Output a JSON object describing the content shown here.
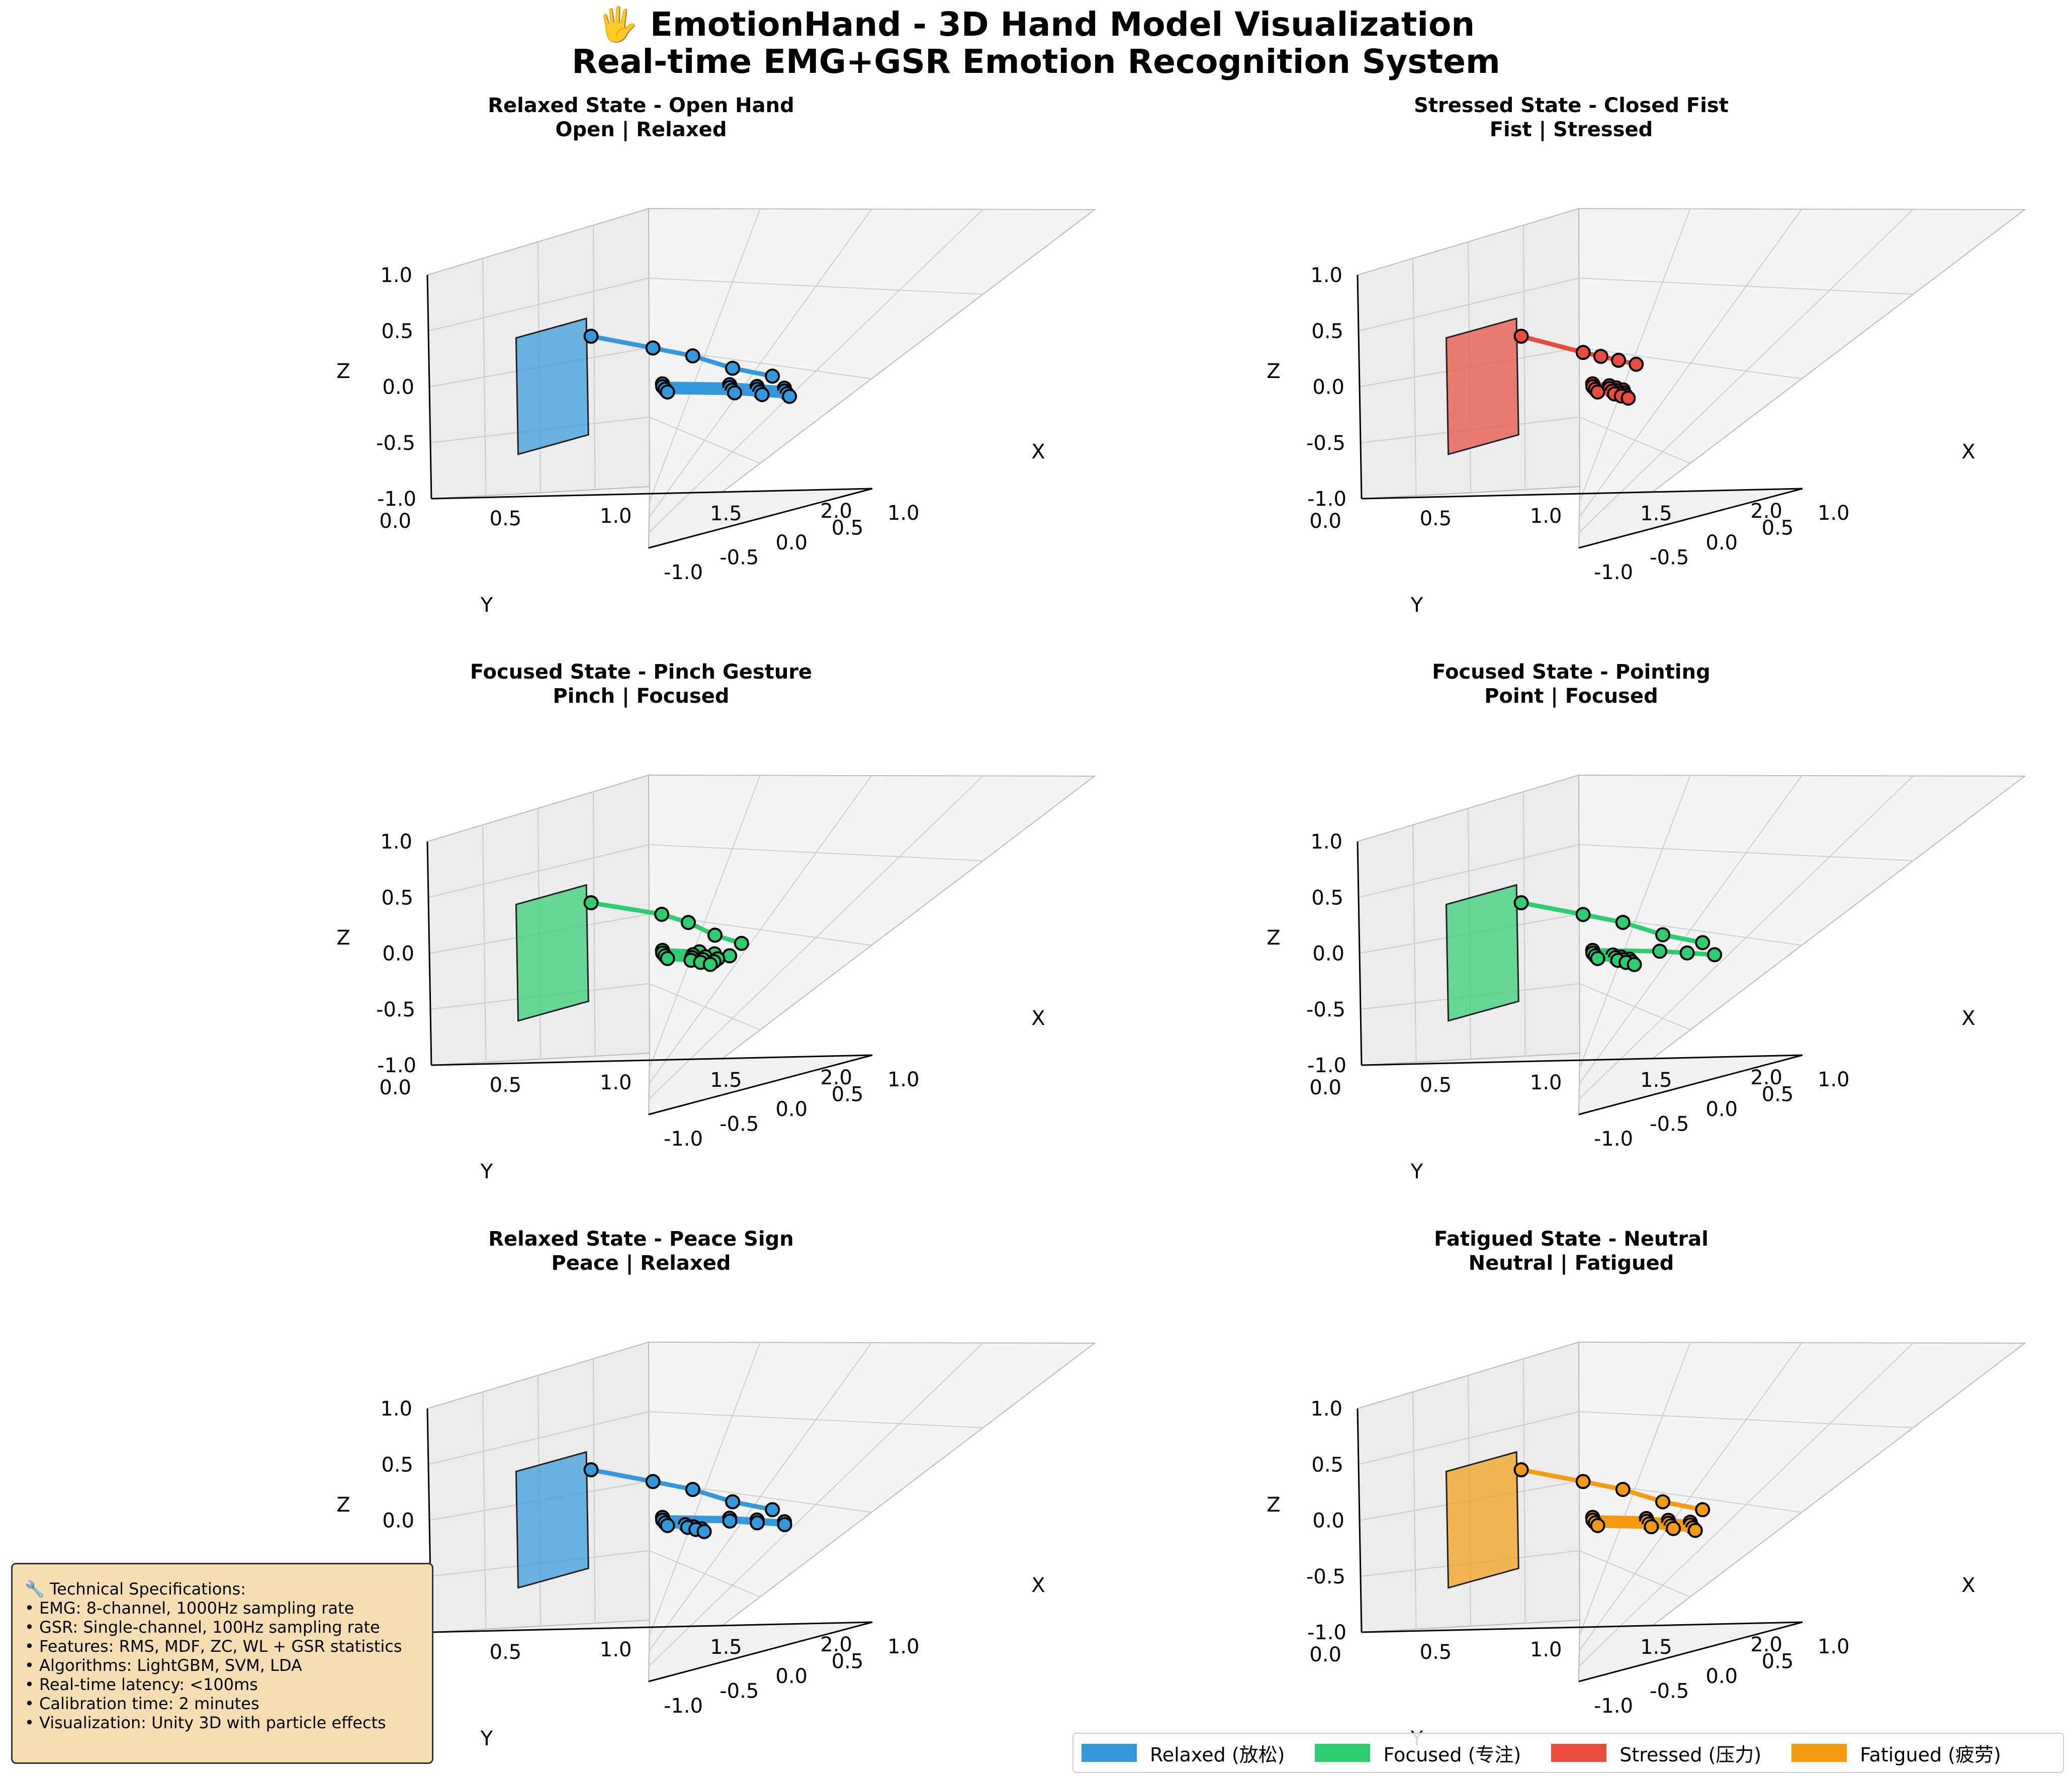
{
  "title": {
    "line1": "🖐 EmotionHand - 3D Hand Model Visualization",
    "line2": "Real-time EMG+GSR Emotion Recognition System"
  },
  "colors": {
    "Relaxed": "#3498db",
    "Focused": "#2ecc71",
    "Stressed": "#e74c3c",
    "Fatigued": "#f39c12"
  },
  "chart_data": [
    {
      "type": "scatter3d",
      "title": "Relaxed State - Open Hand",
      "subtitle": "Open | Relaxed",
      "emotion": "Relaxed",
      "gesture": "open",
      "xlabel": "X",
      "ylabel": "Y",
      "zlabel": "Z",
      "xlim": [
        1.0,
        -1.0
      ],
      "ylim": [
        0.0,
        2.0
      ],
      "zlim": [
        -1.0,
        1.0
      ],
      "xticks": [
        "1.0",
        "0.5",
        "0.0",
        "-0.5",
        "-1.0"
      ],
      "yticks": [
        "0.0",
        "0.5",
        "1.0",
        "1.5",
        "2.0"
      ],
      "zticks": [
        "-1.0",
        "-0.5",
        "0.0",
        "0.5",
        "1.0"
      ]
    },
    {
      "type": "scatter3d",
      "title": "Stressed State - Closed Fist",
      "subtitle": "Fist | Stressed",
      "emotion": "Stressed",
      "gesture": "fist",
      "xlabel": "X",
      "ylabel": "Y",
      "zlabel": "Z",
      "xlim": [
        1.0,
        -1.0
      ],
      "ylim": [
        0.0,
        2.0
      ],
      "zlim": [
        -1.0,
        1.0
      ],
      "xticks": [
        "1.0",
        "0.5",
        "0.0",
        "-0.5",
        "-1.0"
      ],
      "yticks": [
        "0.0",
        "0.5",
        "1.0",
        "1.5",
        "2.0"
      ],
      "zticks": [
        "-1.0",
        "-0.5",
        "0.0",
        "0.5",
        "1.0"
      ]
    },
    {
      "type": "scatter3d",
      "title": "Focused State - Pinch Gesture",
      "subtitle": "Pinch | Focused",
      "emotion": "Focused",
      "gesture": "pinch",
      "xlabel": "X",
      "ylabel": "Y",
      "zlabel": "Z",
      "xlim": [
        1.0,
        -1.0
      ],
      "ylim": [
        0.0,
        2.0
      ],
      "zlim": [
        -1.0,
        1.0
      ],
      "xticks": [
        "1.0",
        "0.5",
        "0.0",
        "-0.5",
        "-1.0"
      ],
      "yticks": [
        "0.0",
        "0.5",
        "1.0",
        "1.5",
        "2.0"
      ],
      "zticks": [
        "-1.0",
        "-0.5",
        "0.0",
        "0.5",
        "1.0"
      ]
    },
    {
      "type": "scatter3d",
      "title": "Focused State - Pointing",
      "subtitle": "Point | Focused",
      "emotion": "Focused",
      "gesture": "point",
      "xlabel": "X",
      "ylabel": "Y",
      "zlabel": "Z",
      "xlim": [
        1.0,
        -1.0
      ],
      "ylim": [
        0.0,
        2.0
      ],
      "zlim": [
        -1.0,
        1.0
      ],
      "xticks": [
        "1.0",
        "0.5",
        "0.0",
        "-0.5",
        "-1.0"
      ],
      "yticks": [
        "0.0",
        "0.5",
        "1.0",
        "1.5",
        "2.0"
      ],
      "zticks": [
        "-1.0",
        "-0.5",
        "0.0",
        "0.5",
        "1.0"
      ]
    },
    {
      "type": "scatter3d",
      "title": "Relaxed State - Peace Sign",
      "subtitle": "Peace | Relaxed",
      "emotion": "Relaxed",
      "gesture": "peace",
      "xlabel": "X",
      "ylabel": "Y",
      "zlabel": "Z",
      "xlim": [
        1.0,
        -1.0
      ],
      "ylim": [
        0.0,
        2.0
      ],
      "zlim": [
        -1.0,
        1.0
      ],
      "xticks": [
        "1.0",
        "0.5",
        "0.0",
        "-0.5",
        "-1.0"
      ],
      "yticks": [
        "0.0",
        "0.5",
        "1.0",
        "1.5",
        "2.0"
      ],
      "zticks": [
        "-1.0",
        "-0.5",
        "0.0",
        "0.5",
        "1.0"
      ]
    },
    {
      "type": "scatter3d",
      "title": "Fatigued State - Neutral",
      "subtitle": "Neutral | Fatigued",
      "emotion": "Fatigued",
      "gesture": "neutral",
      "xlabel": "X",
      "ylabel": "Y",
      "zlabel": "Z",
      "xlim": [
        1.0,
        -1.0
      ],
      "ylim": [
        0.0,
        2.0
      ],
      "zlim": [
        -1.0,
        1.0
      ],
      "xticks": [
        "1.0",
        "0.5",
        "0.0",
        "-0.5",
        "-1.0"
      ],
      "yticks": [
        "0.0",
        "0.5",
        "1.0",
        "1.5",
        "2.0"
      ],
      "zticks": [
        "-1.0",
        "-0.5",
        "0.0",
        "0.5",
        "1.0"
      ]
    }
  ],
  "specs": {
    "title": "🔧 Technical Specifications:",
    "lines": [
      "• EMG: 8-channel, 1000Hz sampling rate",
      "• GSR: Single-channel, 100Hz sampling rate",
      "• Features: RMS, MDF, ZC, WL + GSR statistics",
      "• Algorithms: LightGBM, SVM, LDA",
      "• Real-time latency: <100ms",
      "• Calibration time: 2 minutes",
      "• Visualization: Unity 3D with particle effects"
    ]
  },
  "legend": [
    {
      "label": "Relaxed (放松)",
      "color": "#3498db"
    },
    {
      "label": "Focused (专注)",
      "color": "#2ecc71"
    },
    {
      "label": "Stressed (压力)",
      "color": "#e74c3c"
    },
    {
      "label": "Fatigued (疲劳)",
      "color": "#f39c12"
    }
  ]
}
